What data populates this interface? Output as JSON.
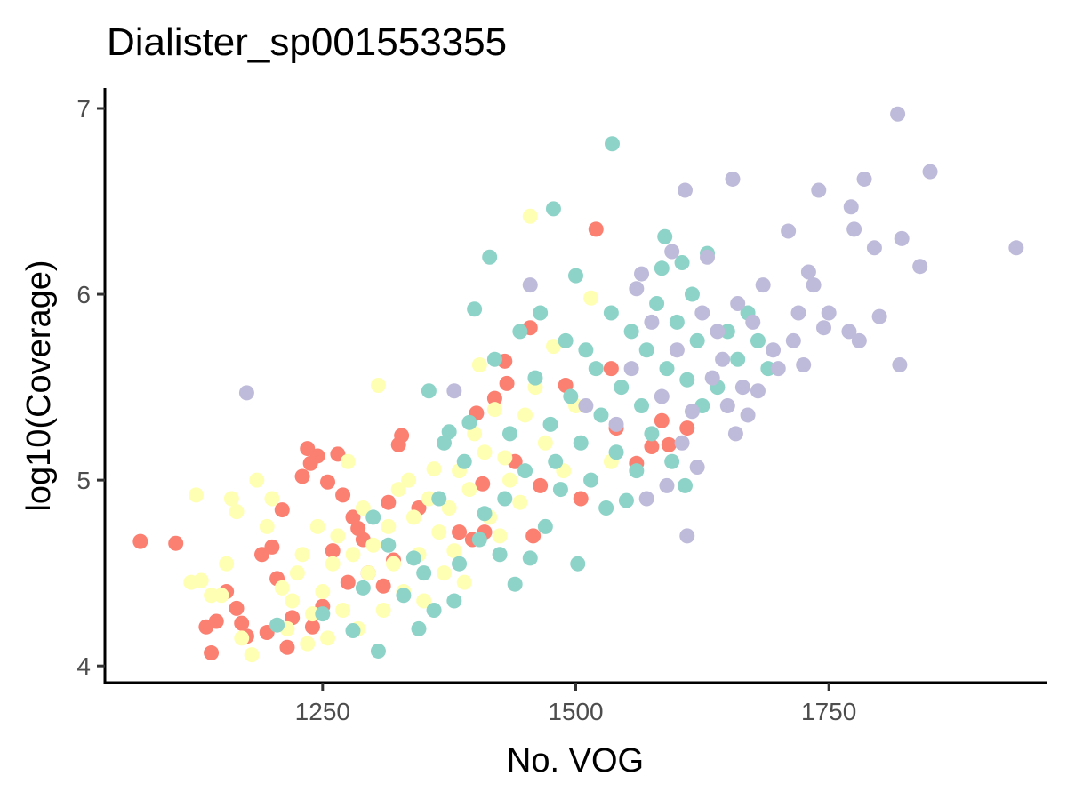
{
  "chart_data": {
    "type": "scatter",
    "title": "Dialister_sp001553355",
    "xlabel": "No. VOG",
    "ylabel": "log10(Coverage)",
    "xlim": [
      1035,
      1965
    ],
    "ylim": [
      3.91,
      7.11
    ],
    "x_ticks": [
      1250,
      1500,
      1750
    ],
    "x_tick_labels": [
      "1250",
      "1500",
      "1750"
    ],
    "y_ticks": [
      4,
      5,
      6,
      7
    ],
    "y_tick_labels": [
      "4",
      "5",
      "6",
      "7"
    ],
    "grid": false,
    "legend": "none",
    "series": [
      {
        "color": "#fb8072",
        "points": [
          [
            1070,
            4.67
          ],
          [
            1105,
            4.66
          ],
          [
            1135,
            4.21
          ],
          [
            1140,
            4.07
          ],
          [
            1145,
            4.24
          ],
          [
            1155,
            4.4
          ],
          [
            1165,
            4.31
          ],
          [
            1170,
            4.23
          ],
          [
            1175,
            4.16
          ],
          [
            1190,
            4.6
          ],
          [
            1195,
            4.18
          ],
          [
            1200,
            4.64
          ],
          [
            1205,
            4.47
          ],
          [
            1210,
            4.84
          ],
          [
            1215,
            4.1
          ],
          [
            1220,
            4.26
          ],
          [
            1230,
            5.02
          ],
          [
            1235,
            5.17
          ],
          [
            1238,
            5.09
          ],
          [
            1240,
            4.21
          ],
          [
            1245,
            5.13
          ],
          [
            1250,
            4.32
          ],
          [
            1255,
            4.99
          ],
          [
            1260,
            4.62
          ],
          [
            1265,
            5.14
          ],
          [
            1270,
            4.92
          ],
          [
            1275,
            4.45
          ],
          [
            1280,
            4.8
          ],
          [
            1285,
            4.74
          ],
          [
            1290,
            4.68
          ],
          [
            1295,
            4.5
          ],
          [
            1310,
            4.43
          ],
          [
            1315,
            4.88
          ],
          [
            1320,
            4.57
          ],
          [
            1325,
            5.19
          ],
          [
            1328,
            5.24
          ],
          [
            1345,
            4.85
          ],
          [
            1385,
            4.72
          ],
          [
            1398,
            4.68
          ],
          [
            1402,
            5.36
          ],
          [
            1408,
            4.98
          ],
          [
            1410,
            4.72
          ],
          [
            1420,
            5.44
          ],
          [
            1430,
            5.64
          ],
          [
            1432,
            5.52
          ],
          [
            1440,
            5.1
          ],
          [
            1455,
            5.82
          ],
          [
            1458,
            4.7
          ],
          [
            1465,
            4.97
          ],
          [
            1490,
            5.51
          ],
          [
            1505,
            4.9
          ],
          [
            1520,
            6.35
          ],
          [
            1535,
            5.6
          ],
          [
            1540,
            5.28
          ],
          [
            1560,
            5.09
          ],
          [
            1575,
            5.18
          ],
          [
            1585,
            5.32
          ],
          [
            1592,
            5.19
          ],
          [
            1610,
            5.28
          ]
        ]
      },
      {
        "color": "#ffffb3",
        "points": [
          [
            1120,
            4.45
          ],
          [
            1125,
            4.92
          ],
          [
            1130,
            4.46
          ],
          [
            1140,
            4.38
          ],
          [
            1150,
            4.38
          ],
          [
            1155,
            4.55
          ],
          [
            1160,
            4.9
          ],
          [
            1165,
            4.83
          ],
          [
            1170,
            4.15
          ],
          [
            1180,
            4.06
          ],
          [
            1185,
            5.0
          ],
          [
            1195,
            4.75
          ],
          [
            1200,
            4.9
          ],
          [
            1210,
            4.42
          ],
          [
            1215,
            4.2
          ],
          [
            1220,
            4.35
          ],
          [
            1225,
            4.5
          ],
          [
            1230,
            4.6
          ],
          [
            1235,
            4.12
          ],
          [
            1240,
            4.28
          ],
          [
            1245,
            4.75
          ],
          [
            1250,
            4.4
          ],
          [
            1255,
            4.15
          ],
          [
            1260,
            4.55
          ],
          [
            1265,
            4.7
          ],
          [
            1270,
            4.3
          ],
          [
            1275,
            5.1
          ],
          [
            1280,
            4.6
          ],
          [
            1285,
            4.2
          ],
          [
            1290,
            4.85
          ],
          [
            1295,
            4.5
          ],
          [
            1300,
            4.65
          ],
          [
            1305,
            5.51
          ],
          [
            1310,
            4.3
          ],
          [
            1315,
            4.75
          ],
          [
            1320,
            4.55
          ],
          [
            1325,
            4.95
          ],
          [
            1330,
            4.4
          ],
          [
            1335,
            5.0
          ],
          [
            1340,
            4.8
          ],
          [
            1345,
            4.6
          ],
          [
            1350,
            4.35
          ],
          [
            1355,
            4.9
          ],
          [
            1360,
            5.06
          ],
          [
            1365,
            4.72
          ],
          [
            1370,
            4.5
          ],
          [
            1375,
            4.85
          ],
          [
            1380,
            4.62
          ],
          [
            1385,
            5.05
          ],
          [
            1390,
            4.45
          ],
          [
            1395,
            4.95
          ],
          [
            1400,
            5.25
          ],
          [
            1405,
            5.62
          ],
          [
            1410,
            5.15
          ],
          [
            1415,
            4.8
          ],
          [
            1420,
            5.38
          ],
          [
            1425,
            4.7
          ],
          [
            1430,
            5.12
          ],
          [
            1435,
            5.0
          ],
          [
            1445,
            4.88
          ],
          [
            1450,
            5.35
          ],
          [
            1455,
            6.42
          ],
          [
            1460,
            5.5
          ],
          [
            1470,
            5.2
          ],
          [
            1478,
            5.72
          ],
          [
            1488,
            5.05
          ],
          [
            1500,
            5.4
          ],
          [
            1515,
            5.98
          ],
          [
            1535,
            5.1
          ]
        ]
      },
      {
        "color": "#8dd3c7",
        "points": [
          [
            1205,
            4.22
          ],
          [
            1250,
            4.28
          ],
          [
            1280,
            4.19
          ],
          [
            1290,
            4.42
          ],
          [
            1300,
            4.8
          ],
          [
            1305,
            4.08
          ],
          [
            1315,
            4.65
          ],
          [
            1330,
            4.38
          ],
          [
            1340,
            4.58
          ],
          [
            1345,
            4.2
          ],
          [
            1350,
            4.5
          ],
          [
            1355,
            5.48
          ],
          [
            1360,
            4.3
          ],
          [
            1365,
            4.9
          ],
          [
            1370,
            5.2
          ],
          [
            1375,
            5.26
          ],
          [
            1380,
            4.35
          ],
          [
            1385,
            4.55
          ],
          [
            1390,
            5.1
          ],
          [
            1395,
            5.31
          ],
          [
            1400,
            5.92
          ],
          [
            1405,
            4.68
          ],
          [
            1410,
            4.82
          ],
          [
            1415,
            6.2
          ],
          [
            1420,
            5.65
          ],
          [
            1425,
            4.6
          ],
          [
            1430,
            4.9
          ],
          [
            1435,
            5.25
          ],
          [
            1440,
            4.44
          ],
          [
            1445,
            5.8
          ],
          [
            1450,
            5.05
          ],
          [
            1455,
            4.58
          ],
          [
            1460,
            5.55
          ],
          [
            1465,
            5.9
          ],
          [
            1470,
            4.75
          ],
          [
            1475,
            5.3
          ],
          [
            1478,
            6.46
          ],
          [
            1480,
            5.1
          ],
          [
            1485,
            4.95
          ],
          [
            1490,
            5.75
          ],
          [
            1495,
            5.45
          ],
          [
            1500,
            6.1
          ],
          [
            1502,
            4.55
          ],
          [
            1505,
            5.2
          ],
          [
            1510,
            5.7
          ],
          [
            1515,
            5.0
          ],
          [
            1520,
            5.6
          ],
          [
            1525,
            5.35
          ],
          [
            1530,
            4.85
          ],
          [
            1535,
            5.9
          ],
          [
            1536,
            6.81
          ],
          [
            1540,
            5.15
          ],
          [
            1545,
            5.5
          ],
          [
            1550,
            4.89
          ],
          [
            1555,
            5.8
          ],
          [
            1560,
            5.05
          ],
          [
            1565,
            5.4
          ],
          [
            1570,
            5.7
          ],
          [
            1575,
            5.25
          ],
          [
            1580,
            5.95
          ],
          [
            1585,
            6.14
          ],
          [
            1588,
            6.31
          ],
          [
            1590,
            5.6
          ],
          [
            1595,
            5.1
          ],
          [
            1600,
            5.85
          ],
          [
            1605,
            6.17
          ],
          [
            1608,
            4.97
          ],
          [
            1610,
            5.54
          ],
          [
            1615,
            6.0
          ],
          [
            1620,
            5.75
          ],
          [
            1625,
            5.4
          ],
          [
            1630,
            6.22
          ],
          [
            1640,
            5.5
          ],
          [
            1650,
            5.8
          ],
          [
            1660,
            5.65
          ],
          [
            1670,
            5.9
          ],
          [
            1680,
            5.75
          ],
          [
            1690,
            5.6
          ]
        ]
      },
      {
        "color": "#bebada",
        "points": [
          [
            1175,
            5.47
          ],
          [
            1380,
            5.48
          ],
          [
            1455,
            6.05
          ],
          [
            1510,
            5.4
          ],
          [
            1540,
            5.3
          ],
          [
            1555,
            5.6
          ],
          [
            1560,
            6.03
          ],
          [
            1565,
            6.11
          ],
          [
            1570,
            4.9
          ],
          [
            1575,
            5.85
          ],
          [
            1585,
            5.45
          ],
          [
            1590,
            4.97
          ],
          [
            1595,
            6.23
          ],
          [
            1600,
            5.7
          ],
          [
            1605,
            5.2
          ],
          [
            1608,
            6.56
          ],
          [
            1610,
            4.7
          ],
          [
            1615,
            5.37
          ],
          [
            1620,
            5.07
          ],
          [
            1625,
            5.9
          ],
          [
            1630,
            6.2
          ],
          [
            1635,
            5.55
          ],
          [
            1640,
            5.8
          ],
          [
            1645,
            5.65
          ],
          [
            1650,
            5.4
          ],
          [
            1655,
            6.62
          ],
          [
            1658,
            5.25
          ],
          [
            1660,
            5.95
          ],
          [
            1665,
            5.5
          ],
          [
            1670,
            5.35
          ],
          [
            1675,
            5.85
          ],
          [
            1680,
            5.48
          ],
          [
            1685,
            6.05
          ],
          [
            1695,
            5.7
          ],
          [
            1700,
            5.6
          ],
          [
            1710,
            6.34
          ],
          [
            1715,
            5.75
          ],
          [
            1720,
            5.9
          ],
          [
            1725,
            5.62
          ],
          [
            1730,
            6.12
          ],
          [
            1735,
            6.05
          ],
          [
            1740,
            6.56
          ],
          [
            1745,
            5.82
          ],
          [
            1750,
            5.9
          ],
          [
            1770,
            5.8
          ],
          [
            1772,
            6.47
          ],
          [
            1775,
            6.35
          ],
          [
            1780,
            5.75
          ],
          [
            1785,
            6.62
          ],
          [
            1795,
            6.25
          ],
          [
            1800,
            5.88
          ],
          [
            1818,
            6.97
          ],
          [
            1820,
            5.62
          ],
          [
            1822,
            6.3
          ],
          [
            1840,
            6.15
          ],
          [
            1850,
            6.66
          ],
          [
            1935,
            6.25
          ]
        ]
      }
    ]
  }
}
